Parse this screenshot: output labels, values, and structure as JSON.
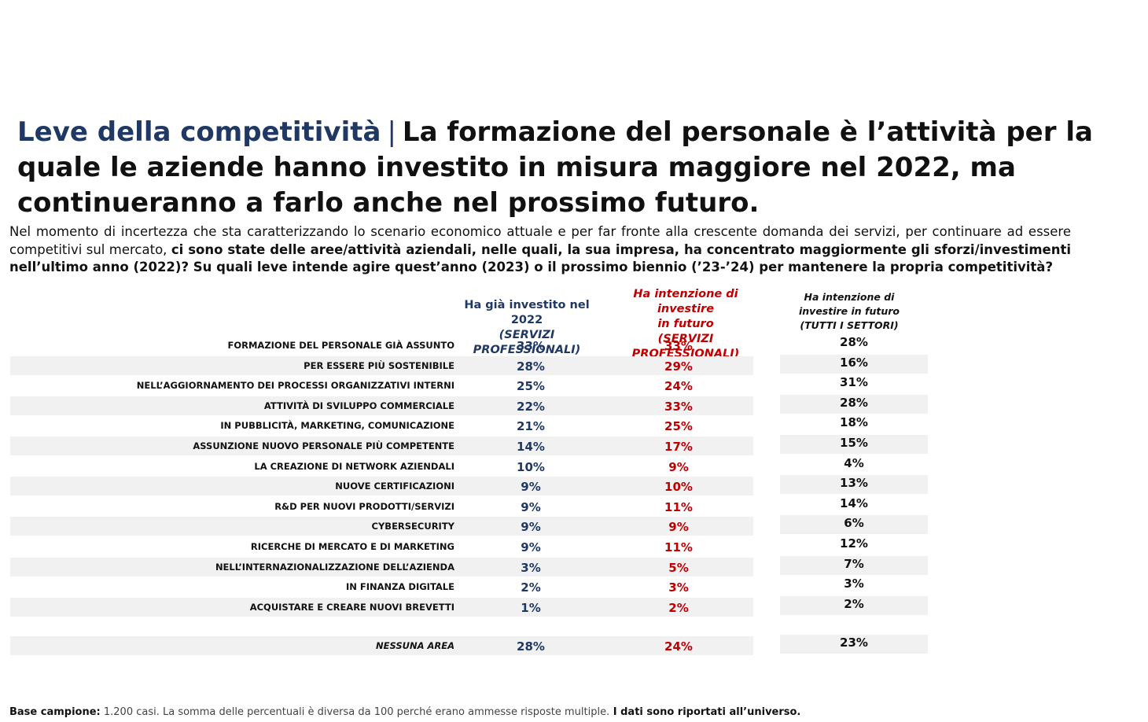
{
  "title": {
    "lead": "Leve della competitività",
    "separator": "|",
    "rest": "La formazione del personale è l’attività per la quale le aziende hanno investito in misura maggiore nel 2022, ma continueranno a farlo anche nel prossimo futuro."
  },
  "intro": {
    "plain": "Nel momento di incertezza che sta caratterizzando lo scenario economico attuale e per far fronte alla crescente domanda dei servizi, per continuare ad essere competitivi sul mercato,",
    "bold": "ci sono state delle aree/attività aziendali, nelle quali, la sua impresa, ha concentrato maggiormente gli sforzi/investimenti nell’ultimo anno (2022)? Su quali leve intende agire quest’anno (2023) o il prossimo biennio (’23-’24) per mantenere la propria competitività?"
  },
  "columns": {
    "col1": {
      "line1": "Ha già investito nel 2022",
      "line2": "(SERVIZI PROFESSIONALI)"
    },
    "col2": {
      "line1": "Ha intenzione di investire",
      "line2": "in futuro",
      "line3": "(SERVIZI PROFESSIONALI)"
    },
    "col3": {
      "line1": "Ha intenzione di",
      "line2": "investire in futuro",
      "line3": "(TUTTI I SETTORI)"
    }
  },
  "rows": [
    {
      "label": "FORMAZIONE DEL PERSONALE GIÀ ASSUNTO",
      "invested_2022": "33%",
      "future_prof": "33%",
      "future_all": "28%"
    },
    {
      "label": "PER ESSERE PIÙ SOSTENIBILE",
      "invested_2022": "28%",
      "future_prof": "29%",
      "future_all": "16%"
    },
    {
      "label": "NELL’AGGIORNAMENTO DEI PROCESSI ORGANIZZATIVI INTERNI",
      "invested_2022": "25%",
      "future_prof": "24%",
      "future_all": "31%"
    },
    {
      "label": "ATTIVITÀ DI SVILUPPO COMMERCIALE",
      "invested_2022": "22%",
      "future_prof": "33%",
      "future_all": "28%"
    },
    {
      "label": "IN PUBBLICITÀ, MARKETING, COMUNICAZIONE",
      "invested_2022": "21%",
      "future_prof": "25%",
      "future_all": "18%"
    },
    {
      "label": "ASSUNZIONE NUOVO PERSONALE PIÙ COMPETENTE",
      "invested_2022": "14%",
      "future_prof": "17%",
      "future_all": "15%"
    },
    {
      "label": "LA CREAZIONE DI NETWORK AZIENDALI",
      "invested_2022": "10%",
      "future_prof": "9%",
      "future_all": "4%"
    },
    {
      "label": "NUOVE CERTIFICAZIONI",
      "invested_2022": "9%",
      "future_prof": "10%",
      "future_all": "13%"
    },
    {
      "label": "R&D PER NUOVI PRODOTTI/SERVIZI",
      "invested_2022": "9%",
      "future_prof": "11%",
      "future_all": "14%"
    },
    {
      "label": "CYBERSECURITY",
      "invested_2022": "9%",
      "future_prof": "9%",
      "future_all": "6%"
    },
    {
      "label": "RICERCHE DI MERCATO E DI MARKETING",
      "invested_2022": "9%",
      "future_prof": "11%",
      "future_all": "12%"
    },
    {
      "label": "NELL’INTERNAZIONALIZZAZIONE DELL’AZIENDA",
      "invested_2022": "3%",
      "future_prof": "5%",
      "future_all": "7%"
    },
    {
      "label": "IN FINANZA DIGITALE",
      "invested_2022": "2%",
      "future_prof": "3%",
      "future_all": "3%"
    },
    {
      "label": "ACQUISTARE E CREARE NUOVI BREVETTI",
      "invested_2022": "1%",
      "future_prof": "2%",
      "future_all": "2%"
    }
  ],
  "none_row": {
    "label": "NESSUNA AREA",
    "invested_2022": "28%",
    "future_prof": "24%",
    "future_all": "23%"
  },
  "footer": {
    "label": "Base campione:",
    "note": " 1.200 casi. La somma delle percentuali è diversa da 100 perché erano ammesse risposte multiple.",
    "bold": " I dati sono riportati all’universo."
  },
  "colors": {
    "navy": "#1f3864",
    "red": "#c00000",
    "shade": "#f1f1f1"
  }
}
